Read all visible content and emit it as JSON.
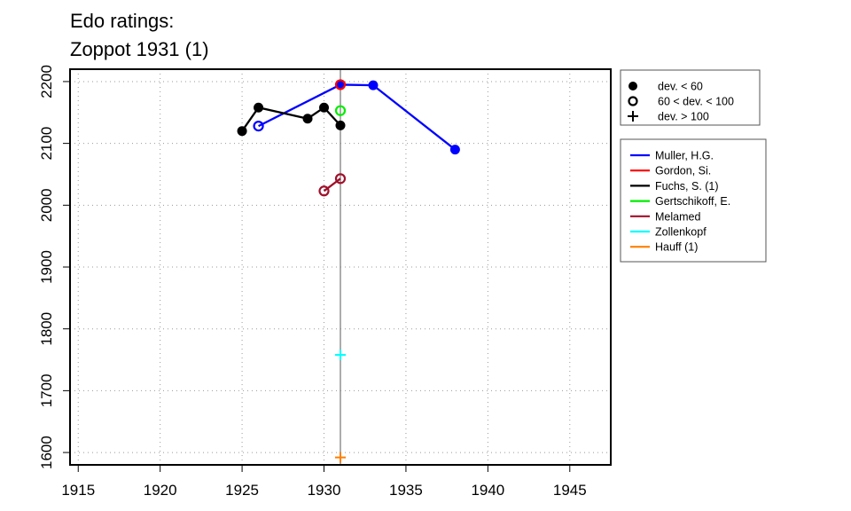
{
  "chart_data": {
    "type": "line",
    "title": [
      "Edo ratings:",
      "Zoppot 1931 (1)"
    ],
    "xlabel": "",
    "ylabel": "",
    "xlim": [
      1914.5,
      1947.5
    ],
    "ylim": [
      1580,
      2220
    ],
    "xticks": [
      1915,
      1920,
      1925,
      1930,
      1935,
      1940,
      1945
    ],
    "yticks": [
      1600,
      1700,
      1800,
      1900,
      2000,
      2100,
      2200
    ],
    "grid": true,
    "event_marker_x": 1931,
    "colors": {
      "event_line": "#808080",
      "axis": "#000000"
    },
    "marker_legend": {
      "placement": "top-right outside",
      "items": [
        {
          "symbol": "filled-circle",
          "label": "dev. < 60"
        },
        {
          "symbol": "open-circle",
          "label": "60 < dev. < 100"
        },
        {
          "symbol": "plus",
          "label": "dev. > 100"
        }
      ]
    },
    "series_legend_placement": "right outside",
    "series": [
      {
        "name": "Muller, H.G.",
        "color": "#0000ff",
        "points": [
          {
            "x": 1926,
            "y": 2128,
            "dev": "open"
          },
          {
            "x": 1931,
            "y": 2195,
            "dev": "filled"
          },
          {
            "x": 1933,
            "y": 2194,
            "dev": "filled"
          },
          {
            "x": 1938,
            "y": 2090,
            "dev": "filled"
          }
        ]
      },
      {
        "name": "Gordon, Si.",
        "color": "#ff0000",
        "points": [
          {
            "x": 1931,
            "y": 2195,
            "dev": "open"
          }
        ]
      },
      {
        "name": "Fuchs, S. (1)",
        "color": "#000000",
        "points": [
          {
            "x": 1925,
            "y": 2120,
            "dev": "filled"
          },
          {
            "x": 1926,
            "y": 2158,
            "dev": "filled"
          },
          {
            "x": 1929,
            "y": 2140,
            "dev": "filled"
          },
          {
            "x": 1930,
            "y": 2158,
            "dev": "filled"
          },
          {
            "x": 1931,
            "y": 2129,
            "dev": "filled"
          }
        ]
      },
      {
        "name": "Gertschikoff, E.",
        "color": "#00ee00",
        "points": [
          {
            "x": 1931,
            "y": 2153,
            "dev": "open"
          }
        ]
      },
      {
        "name": "Melamed",
        "color": "#a0102a",
        "points": [
          {
            "x": 1930,
            "y": 2023,
            "dev": "open"
          },
          {
            "x": 1931,
            "y": 2043,
            "dev": "open"
          }
        ]
      },
      {
        "name": "Zollenkopf",
        "color": "#00ffff",
        "points": [
          {
            "x": 1931,
            "y": 1758,
            "dev": "plus"
          }
        ]
      },
      {
        "name": "Hauff (1)",
        "color": "#ff7f00",
        "points": [
          {
            "x": 1931,
            "y": 1592,
            "dev": "plus"
          }
        ]
      }
    ]
  }
}
